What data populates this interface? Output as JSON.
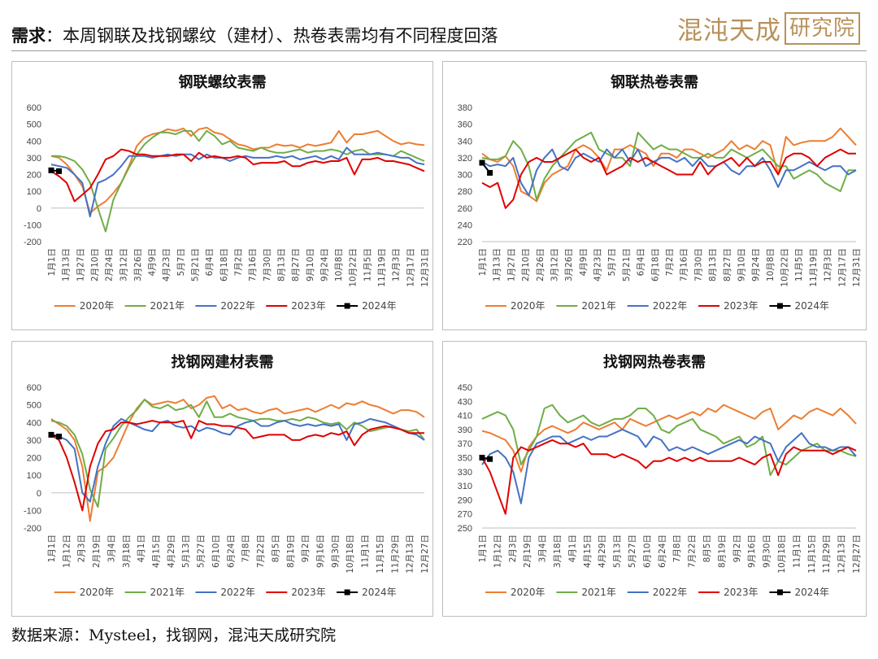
{
  "header": {
    "lead": "需求",
    "title": "：本周钢联及找钢螺纹（建材）、热卷表需均有不同程度回落"
  },
  "logo": {
    "text": "混沌天成",
    "boxed": "研究院",
    "color": "#b8915a"
  },
  "footer": {
    "source": "数据来源：Mysteel，找钢网，混沌天成研究院"
  },
  "colors": {
    "2020年": "#ED7D31",
    "2021年": "#70AD47",
    "2022年": "#4472C4",
    "2023年": "#E00000",
    "2024年": "#000000"
  },
  "chart_data": [
    {
      "type": "line",
      "title": "钢联螺纹表需",
      "ylim": [
        -200,
        600
      ],
      "yticks": [
        -200,
        -100,
        0,
        100,
        200,
        300,
        400,
        500,
        600
      ],
      "xticklabels": [
        "1月1日",
        "1月13日",
        "1月27日",
        "2月10日",
        "2月24日",
        "3月12日",
        "3月26日",
        "4月9日",
        "4月23日",
        "5月7日",
        "5月21日",
        "6月4日",
        "6月18日",
        "7月2日",
        "7月16日",
        "7月30日",
        "8月13日",
        "8月27日",
        "9月10日",
        "9月24日",
        "10月8日",
        "10月22日",
        "11月5日",
        "11月19日",
        "12月3日",
        "12月17日",
        "12月31日"
      ],
      "legend": [
        "2020年",
        "2021年",
        "2022年",
        "2023年",
        "2024年"
      ],
      "series": [
        {
          "name": "2020年",
          "values": [
            310,
            300,
            260,
            200,
            130,
            -30,
            10,
            40,
            90,
            150,
            250,
            370,
            420,
            440,
            450,
            470,
            460,
            475,
            430,
            470,
            480,
            450,
            440,
            410,
            380,
            370,
            350,
            360,
            360,
            380,
            370,
            375,
            360,
            380,
            370,
            380,
            390,
            460,
            390,
            440,
            440,
            450,
            460,
            430,
            400,
            380,
            390,
            380,
            375
          ]
        },
        {
          "name": "2021年",
          "values": [
            310,
            310,
            300,
            280,
            230,
            150,
            0,
            -140,
            50,
            150,
            240,
            320,
            380,
            420,
            450,
            450,
            440,
            460,
            460,
            400,
            460,
            430,
            380,
            400,
            360,
            350,
            340,
            360,
            340,
            330,
            330,
            340,
            350,
            330,
            340,
            340,
            350,
            340,
            320,
            340,
            350,
            320,
            320,
            320,
            310,
            340,
            320,
            300,
            280
          ]
        },
        {
          "name": "2022年",
          "values": [
            260,
            250,
            240,
            200,
            150,
            -50,
            150,
            170,
            200,
            250,
            310,
            310,
            310,
            300,
            310,
            320,
            310,
            320,
            320,
            290,
            320,
            300,
            300,
            280,
            300,
            310,
            300,
            300,
            300,
            310,
            300,
            310,
            290,
            300,
            310,
            290,
            310,
            290,
            360,
            320,
            320,
            320,
            330,
            320,
            310,
            300,
            300,
            270,
            260
          ]
        },
        {
          "name": "2023年",
          "values": [
            220,
            190,
            150,
            40,
            80,
            120,
            200,
            290,
            310,
            350,
            340,
            320,
            320,
            310,
            310,
            310,
            320,
            320,
            280,
            330,
            300,
            310,
            300,
            300,
            310,
            300,
            260,
            270,
            270,
            270,
            280,
            250,
            250,
            270,
            280,
            270,
            280,
            280,
            300,
            200,
            290,
            290,
            300,
            280,
            280,
            270,
            260,
            240,
            220
          ]
        },
        {
          "name": "2024年",
          "values": [
            225,
            220
          ]
        }
      ]
    },
    {
      "type": "line",
      "title": "钢联热卷表需",
      "ylim": [
        220,
        380
      ],
      "yticks": [
        220,
        240,
        260,
        280,
        300,
        320,
        340,
        360,
        380
      ],
      "xticklabels": [
        "1月1日",
        "1月13日",
        "1月27日",
        "2月10日",
        "2月26日",
        "3月12日",
        "3月26日",
        "4月9日",
        "4月23日",
        "5月7日",
        "5月21日",
        "6月4日",
        "6月18日",
        "7月2日",
        "7月16日",
        "7月30日",
        "8月13日",
        "8月27日",
        "9月10日",
        "9月24日",
        "10月8日",
        "10月22日",
        "11月5日",
        "11月19日",
        "12月3日",
        "12月17日",
        "12月31日"
      ],
      "legend": [
        "2020年",
        "2021年",
        "2022年",
        "2023年",
        "2024年"
      ],
      "series": [
        {
          "name": "2020年",
          "values": [
            325,
            318,
            315,
            322,
            310,
            280,
            275,
            268,
            290,
            300,
            305,
            310,
            330,
            335,
            330,
            320,
            305,
            330,
            330,
            335,
            330,
            325,
            310,
            325,
            325,
            320,
            330,
            330,
            325,
            320,
            325,
            330,
            340,
            330,
            335,
            330,
            340,
            335,
            300,
            345,
            335,
            338,
            340,
            340,
            340,
            345,
            355,
            345,
            335
          ]
        },
        {
          "name": "2021年",
          "values": [
            320,
            318,
            318,
            322,
            340,
            330,
            310,
            270,
            295,
            310,
            320,
            330,
            340,
            345,
            350,
            330,
            325,
            320,
            320,
            310,
            350,
            340,
            330,
            335,
            330,
            330,
            325,
            320,
            320,
            325,
            320,
            320,
            330,
            325,
            320,
            325,
            330,
            320,
            310,
            310,
            295,
            300,
            305,
            300,
            290,
            285,
            280,
            305,
            305
          ]
        },
        {
          "name": "2022年",
          "values": [
            315,
            310,
            312,
            310,
            320,
            290,
            275,
            305,
            320,
            330,
            310,
            305,
            320,
            325,
            320,
            315,
            330,
            320,
            330,
            315,
            330,
            310,
            315,
            320,
            320,
            315,
            320,
            310,
            320,
            310,
            310,
            315,
            305,
            300,
            310,
            310,
            320,
            305,
            285,
            305,
            305,
            310,
            315,
            310,
            305,
            310,
            310,
            300,
            305
          ]
        },
        {
          "name": "2023年",
          "values": [
            290,
            285,
            290,
            260,
            270,
            300,
            315,
            320,
            315,
            315,
            320,
            325,
            330,
            320,
            315,
            320,
            300,
            305,
            310,
            320,
            315,
            320,
            315,
            310,
            305,
            300,
            300,
            300,
            315,
            300,
            310,
            315,
            320,
            310,
            320,
            310,
            315,
            315,
            300,
            320,
            325,
            325,
            320,
            310,
            320,
            325,
            330,
            325,
            325
          ]
        },
        {
          "name": "2024年",
          "values": [
            314,
            302
          ]
        }
      ]
    },
    {
      "type": "line",
      "title": "找钢网建材表需",
      "ylim": [
        -200,
        600
      ],
      "yticks": [
        -200,
        -100,
        0,
        100,
        200,
        300,
        400,
        500,
        600
      ],
      "xticklabels": [
        "1月1日",
        "1月12日",
        "2月3日",
        "2月19日",
        "3月4日",
        "3月18日",
        "4月1日",
        "4月15日",
        "4月29日",
        "5月13日",
        "5月27日",
        "6月10日",
        "6月24日",
        "7月8日",
        "7月22日",
        "8月5日",
        "8月19日",
        "9月2日",
        "9月16日",
        "9月30日",
        "10月18日",
        "11月1日",
        "11月15日",
        "11月29日",
        "12月13日",
        "12月27日"
      ],
      "legend": [
        "2020年",
        "2021年",
        "2022年",
        "2023年",
        "2024年"
      ],
      "series": [
        {
          "name": "2020年",
          "values": [
            420,
            390,
            360,
            300,
            150,
            -160,
            120,
            150,
            200,
            300,
            400,
            480,
            530,
            500,
            510,
            520,
            510,
            530,
            480,
            500,
            540,
            550,
            480,
            500,
            470,
            480,
            460,
            450,
            470,
            480,
            450,
            460,
            470,
            480,
            460,
            480,
            500,
            480,
            510,
            500,
            520,
            500,
            490,
            470,
            450,
            470,
            470,
            460,
            430
          ]
        },
        {
          "name": "2021年",
          "values": [
            410,
            400,
            380,
            330,
            220,
            20,
            -80,
            250,
            310,
            380,
            430,
            470,
            530,
            490,
            480,
            500,
            470,
            480,
            500,
            430,
            520,
            430,
            430,
            450,
            430,
            420,
            410,
            420,
            420,
            410,
            410,
            420,
            410,
            430,
            420,
            400,
            390,
            400,
            360,
            400,
            380,
            350,
            360,
            370,
            380,
            360,
            350,
            360,
            300
          ]
        },
        {
          "name": "2022年",
          "values": [
            330,
            320,
            300,
            250,
            0,
            -50,
            150,
            280,
            380,
            420,
            400,
            380,
            360,
            350,
            400,
            410,
            380,
            370,
            380,
            350,
            370,
            360,
            340,
            330,
            380,
            400,
            410,
            380,
            380,
            400,
            410,
            390,
            380,
            390,
            380,
            390,
            380,
            390,
            300,
            390,
            400,
            420,
            410,
            400,
            380,
            360,
            340,
            330,
            300
          ]
        },
        {
          "name": "2023年",
          "values": [
            330,
            300,
            200,
            60,
            -100,
            150,
            280,
            350,
            360,
            400,
            400,
            390,
            400,
            410,
            400,
            400,
            400,
            410,
            310,
            410,
            390,
            390,
            380,
            380,
            370,
            360,
            310,
            320,
            330,
            330,
            330,
            300,
            300,
            320,
            330,
            320,
            340,
            330,
            350,
            270,
            330,
            360,
            370,
            380,
            370,
            360,
            340,
            340,
            340
          ]
        },
        {
          "name": "2024年",
          "values": [
            330,
            320
          ]
        }
      ]
    },
    {
      "type": "line",
      "title": "找钢网热卷表需",
      "ylim": [
        250,
        450
      ],
      "yticks": [
        250,
        270,
        290,
        310,
        330,
        350,
        370,
        390,
        410,
        430,
        450
      ],
      "xticklabels": [
        "1月1日",
        "1月12日",
        "2月3日",
        "2月19日",
        "3月4日",
        "3月18日",
        "4月1日",
        "4月15日",
        "4月29日",
        "5月13日",
        "5月27日",
        "6月10日",
        "6月24日",
        "7月8日",
        "7月22日",
        "8月5日",
        "8月19日",
        "9月2日",
        "9月16日",
        "9月30日",
        "10月18日",
        "11月1日",
        "11月15日",
        "11月29日",
        "12月13日",
        "12月27日"
      ],
      "legend": [
        "2020年",
        "2021年",
        "2022年",
        "2023年",
        "2024年"
      ],
      "series": [
        {
          "name": "2020年",
          "values": [
            388,
            385,
            380,
            375,
            360,
            330,
            365,
            380,
            390,
            395,
            390,
            385,
            390,
            400,
            395,
            390,
            395,
            400,
            390,
            405,
            400,
            395,
            400,
            405,
            410,
            405,
            410,
            415,
            410,
            420,
            415,
            425,
            420,
            415,
            410,
            405,
            415,
            420,
            390,
            400,
            410,
            405,
            415,
            420,
            415,
            410,
            420,
            410,
            398
          ]
        },
        {
          "name": "2021年",
          "values": [
            405,
            410,
            415,
            410,
            390,
            340,
            360,
            380,
            420,
            425,
            410,
            400,
            405,
            410,
            400,
            395,
            400,
            405,
            405,
            410,
            420,
            420,
            410,
            390,
            385,
            395,
            400,
            405,
            390,
            385,
            380,
            370,
            375,
            380,
            365,
            370,
            380,
            325,
            345,
            340,
            350,
            360,
            365,
            370,
            360,
            360,
            360,
            355,
            352
          ]
        },
        {
          "name": "2022年",
          "values": [
            340,
            355,
            360,
            350,
            330,
            285,
            350,
            370,
            375,
            380,
            380,
            370,
            375,
            380,
            375,
            380,
            380,
            385,
            390,
            385,
            380,
            365,
            380,
            375,
            360,
            365,
            360,
            365,
            360,
            355,
            360,
            365,
            370,
            375,
            370,
            380,
            375,
            370,
            345,
            365,
            375,
            385,
            370,
            365,
            365,
            360,
            365,
            365,
            352
          ]
        },
        {
          "name": "2023年",
          "values": [
            350,
            330,
            300,
            270,
            350,
            365,
            360,
            365,
            370,
            375,
            370,
            370,
            365,
            370,
            355,
            355,
            355,
            350,
            355,
            350,
            345,
            335,
            345,
            345,
            350,
            345,
            350,
            345,
            350,
            345,
            345,
            345,
            345,
            350,
            345,
            340,
            350,
            355,
            325,
            355,
            365,
            360,
            360,
            360,
            360,
            355,
            360,
            365,
            360
          ]
        },
        {
          "name": "2024年",
          "values": [
            350,
            348
          ]
        }
      ]
    }
  ]
}
